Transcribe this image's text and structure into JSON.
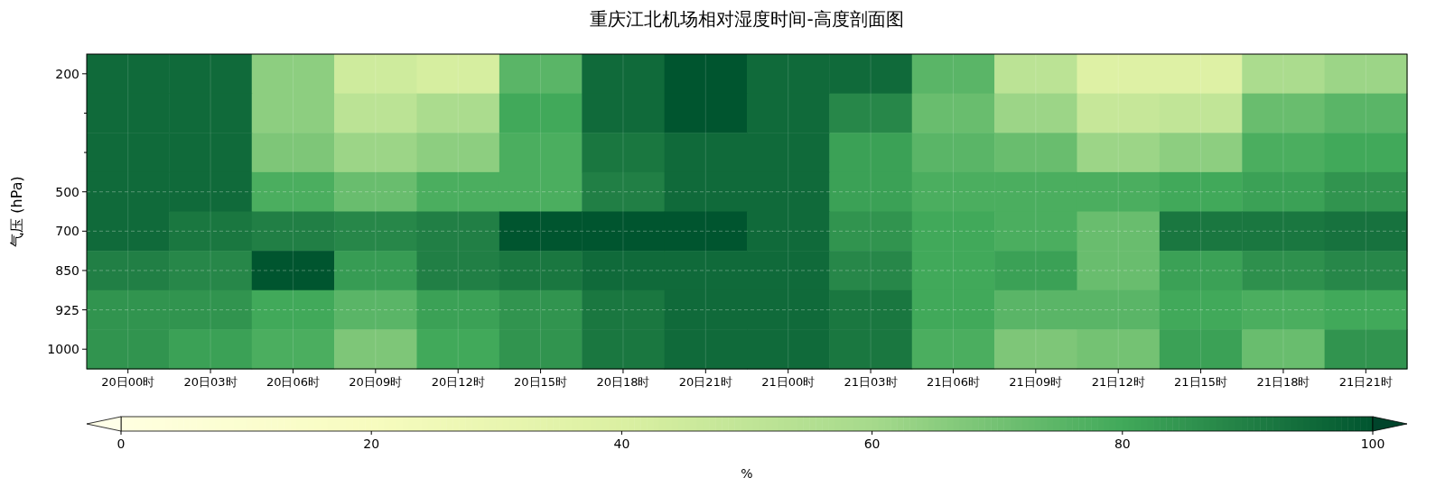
{
  "chart_data": {
    "type": "heatmap",
    "title": "重庆江北机场相对湿度时间-高度剖面图",
    "ylabel": "气压 (hPa)",
    "clabel": "%",
    "categories": [
      "20日00时",
      "20日03时",
      "20日06时",
      "20日09时",
      "20日12时",
      "20日15时",
      "20日18时",
      "20日21时",
      "21日00时",
      "21日03时",
      "21日06时",
      "21日09时",
      "21日12时",
      "21日15时",
      "21日18时",
      "21日21时"
    ],
    "y_categories": [
      "200",
      null,
      null,
      "500",
      "700",
      "850",
      "925",
      "1000"
    ],
    "cells": [
      [
        95,
        95,
        65,
        45,
        42,
        75,
        95,
        100,
        95,
        95,
        75,
        52,
        38,
        38,
        58,
        62
      ],
      [
        95,
        95,
        65,
        52,
        58,
        80,
        95,
        100,
        95,
        88,
        72,
        62,
        48,
        50,
        72,
        75
      ],
      [
        95,
        95,
        68,
        62,
        65,
        78,
        92,
        95,
        95,
        82,
        75,
        72,
        62,
        65,
        78,
        80
      ],
      [
        95,
        95,
        78,
        72,
        78,
        78,
        90,
        95,
        95,
        82,
        78,
        78,
        78,
        80,
        82,
        85
      ],
      [
        95,
        92,
        90,
        88,
        90,
        100,
        100,
        100,
        95,
        85,
        80,
        78,
        72,
        92,
        92,
        93
      ],
      [
        90,
        88,
        100,
        83,
        90,
        92,
        95,
        95,
        95,
        88,
        80,
        82,
        72,
        82,
        86,
        88
      ],
      [
        85,
        85,
        80,
        75,
        82,
        85,
        92,
        95,
        95,
        92,
        80,
        75,
        75,
        80,
        78,
        80
      ],
      [
        85,
        82,
        78,
        68,
        80,
        85,
        92,
        95,
        95,
        92,
        78,
        68,
        70,
        82,
        72,
        85
      ]
    ],
    "clim": [
      0,
      100
    ],
    "cticks": [
      0,
      20,
      40,
      60,
      80,
      100
    ],
    "grid": true
  }
}
